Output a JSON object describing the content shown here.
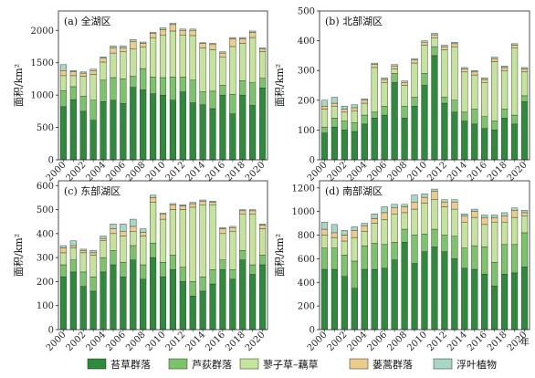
{
  "legend": {
    "items": [
      {
        "label": "苔草群落",
        "color": "#2e8b3c"
      },
      {
        "label": "芦荻群落",
        "color": "#7bc46a"
      },
      {
        "label": "蓼子草–藕草",
        "color": "#c4e39b"
      },
      {
        "label": "蒌蒿群落",
        "color": "#edcb8a"
      },
      {
        "label": "浮叶植物",
        "color": "#a6d8c4"
      }
    ]
  },
  "chart_data": [
    {
      "type": "bar",
      "stacked": true,
      "title": "(a) 全湖区",
      "ylabel": "面积/km²",
      "ylim": [
        0,
        2300
      ],
      "yticks": [
        0,
        500,
        1000,
        1500,
        2000
      ],
      "years": [
        2000,
        2001,
        2002,
        2003,
        2004,
        2005,
        2006,
        2007,
        2008,
        2009,
        2010,
        2011,
        2012,
        2013,
        2014,
        2015,
        2016,
        2017,
        2018,
        2019,
        2020
      ],
      "xtick_labels": [
        "2000",
        "2002",
        "2004",
        "2006",
        "2008",
        "2010",
        "2012",
        "2014",
        "2016",
        "2018",
        "2020"
      ],
      "series": [
        {
          "name": "苔草群落",
          "values": [
            820,
            930,
            750,
            610,
            900,
            920,
            870,
            1120,
            1080,
            1020,
            1000,
            920,
            1050,
            880,
            850,
            790,
            1000,
            710,
            1000,
            840,
            1110
          ]
        },
        {
          "name": "芦荻群落",
          "values": [
            250,
            200,
            230,
            310,
            330,
            350,
            380,
            170,
            330,
            260,
            270,
            360,
            230,
            350,
            200,
            270,
            150,
            300,
            220,
            350,
            150
          ]
        },
        {
          "name": "蓼子草–藕草",
          "values": [
            230,
            170,
            310,
            400,
            280,
            380,
            420,
            420,
            330,
            600,
            660,
            710,
            650,
            690,
            680,
            640,
            440,
            740,
            580,
            700,
            410
          ]
        },
        {
          "name": "蒌蒿群落",
          "values": [
            80,
            60,
            50,
            60,
            60,
            80,
            60,
            120,
            60,
            70,
            80,
            100,
            70,
            80,
            70,
            80,
            60,
            120,
            70,
            80,
            40
          ]
        },
        {
          "name": "浮叶植物",
          "values": [
            90,
            20,
            20,
            20,
            20,
            30,
            30,
            30,
            20,
            20,
            30,
            20,
            20,
            20,
            10,
            20,
            20,
            20,
            20,
            20,
            20
          ]
        }
      ]
    },
    {
      "type": "bar",
      "stacked": true,
      "title": "(b) 北部湖区",
      "ylabel": "面积/km²",
      "ylim": [
        0,
        500
      ],
      "yticks": [
        0,
        100,
        200,
        300,
        400,
        500
      ],
      "years": [
        2000,
        2001,
        2002,
        2003,
        2004,
        2005,
        2006,
        2007,
        2008,
        2009,
        2010,
        2011,
        2012,
        2013,
        2014,
        2015,
        2016,
        2017,
        2018,
        2019,
        2020
      ],
      "xtick_labels": [
        "2000",
        "2002",
        "2004",
        "2006",
        "2008",
        "2010",
        "2012",
        "2014",
        "2016",
        "2018",
        "2020"
      ],
      "series": [
        {
          "name": "苔草群落",
          "values": [
            90,
            110,
            100,
            95,
            120,
            140,
            150,
            260,
            140,
            180,
            250,
            350,
            190,
            160,
            130,
            120,
            105,
            100,
            140,
            120,
            195
          ]
        },
        {
          "name": "芦荻群落",
          "values": [
            20,
            30,
            30,
            30,
            30,
            20,
            30,
            30,
            40,
            30,
            40,
            30,
            20,
            40,
            30,
            50,
            40,
            30,
            30,
            30,
            20
          ]
        },
        {
          "name": "蓼子草–藕草",
          "values": [
            60,
            40,
            30,
            40,
            40,
            150,
            80,
            15,
            70,
            115,
            95,
            30,
            160,
            180,
            135,
            115,
            115,
            200,
            130,
            225,
            80
          ]
        },
        {
          "name": "蒌蒿群落",
          "values": [
            10,
            10,
            10,
            10,
            10,
            10,
            10,
            10,
            10,
            10,
            10,
            10,
            10,
            10,
            10,
            10,
            10,
            10,
            10,
            10,
            10
          ]
        },
        {
          "name": "浮叶植物",
          "values": [
            20,
            20,
            10,
            10,
            5,
            5,
            5,
            5,
            5,
            5,
            5,
            5,
            5,
            5,
            5,
            5,
            5,
            5,
            5,
            5,
            5
          ]
        }
      ]
    },
    {
      "type": "bar",
      "stacked": true,
      "title": "(c) 东部湖区",
      "ylabel": "面积/km²",
      "ylim": [
        0,
        620
      ],
      "yticks": [
        0,
        100,
        200,
        300,
        400,
        500,
        600
      ],
      "years": [
        2000,
        2001,
        2002,
        2003,
        2004,
        2005,
        2006,
        2007,
        2008,
        2009,
        2010,
        2011,
        2012,
        2013,
        2014,
        2015,
        2016,
        2017,
        2018,
        2019,
        2020
      ],
      "xtick_labels": [
        "2000",
        "2002",
        "2004",
        "2006",
        "2008",
        "2010",
        "2012",
        "2014",
        "2016",
        "2018",
        "2020"
      ],
      "series": [
        {
          "name": "苔草群落",
          "values": [
            220,
            240,
            180,
            160,
            240,
            270,
            220,
            290,
            210,
            300,
            220,
            250,
            200,
            140,
            160,
            190,
            250,
            210,
            290,
            230,
            270
          ]
        },
        {
          "name": "芦荻群落",
          "values": [
            50,
            50,
            60,
            60,
            60,
            60,
            60,
            60,
            60,
            60,
            60,
            60,
            60,
            60,
            60,
            60,
            40,
            40,
            40,
            40,
            40
          ]
        },
        {
          "name": "蓼子草–藕草",
          "values": [
            50,
            50,
            80,
            90,
            70,
            70,
            110,
            60,
            120,
            170,
            180,
            190,
            240,
            310,
            300,
            270,
            110,
            160,
            150,
            210,
            110
          ]
        },
        {
          "name": "蒌蒿群落",
          "values": [
            20,
            10,
            10,
            10,
            10,
            20,
            20,
            20,
            15,
            20,
            20,
            20,
            15,
            15,
            15,
            10,
            20,
            15,
            15,
            15,
            15
          ]
        },
        {
          "name": "浮叶植物",
          "values": [
            10,
            20,
            5,
            10,
            10,
            20,
            30,
            30,
            15,
            10,
            5,
            5,
            5,
            5,
            5,
            5,
            5,
            5,
            5,
            5,
            5
          ]
        }
      ]
    },
    {
      "type": "bar",
      "stacked": true,
      "title": "(d) 南部湖区",
      "ylabel": "面积/km²",
      "ylim": [
        0,
        1260
      ],
      "yticks": [
        0,
        200,
        400,
        600,
        800,
        1000,
        1200
      ],
      "years": [
        2000,
        2001,
        2002,
        2003,
        2004,
        2005,
        2006,
        2007,
        2008,
        2009,
        2010,
        2011,
        2012,
        2013,
        2014,
        2015,
        2016,
        2017,
        2018,
        2019,
        2020
      ],
      "xtick_labels": [
        "2000",
        "2002",
        "2004",
        "2006",
        "2008",
        "2010",
        "2012",
        "2014",
        "2016",
        "2018",
        "2020"
      ],
      "series": [
        {
          "name": "苔草群落",
          "values": [
            510,
            510,
            450,
            350,
            510,
            510,
            520,
            590,
            740,
            560,
            660,
            700,
            660,
            600,
            520,
            510,
            470,
            370,
            470,
            480,
            530
          ]
        },
        {
          "name": "芦荻群落",
          "values": [
            180,
            180,
            180,
            230,
            200,
            220,
            200,
            150,
            110,
            240,
            150,
            150,
            140,
            190,
            170,
            200,
            230,
            200,
            250,
            240,
            290
          ]
        },
        {
          "name": "蓼子草–藕草",
          "values": [
            110,
            90,
            120,
            200,
            120,
            170,
            210,
            240,
            140,
            220,
            260,
            250,
            240,
            230,
            220,
            240,
            190,
            340,
            190,
            230,
            140
          ]
        },
        {
          "name": "蒌蒿群落",
          "values": [
            50,
            40,
            50,
            60,
            50,
            40,
            60,
            50,
            50,
            60,
            50,
            70,
            40,
            60,
            50,
            50,
            60,
            40,
            50,
            60,
            30
          ]
        },
        {
          "name": "浮叶植物",
          "values": [
            60,
            70,
            40,
            30,
            20,
            40,
            50,
            30,
            20,
            60,
            30,
            20,
            20,
            20,
            20,
            20,
            20,
            20,
            30,
            20,
            20
          ]
        }
      ]
    }
  ]
}
